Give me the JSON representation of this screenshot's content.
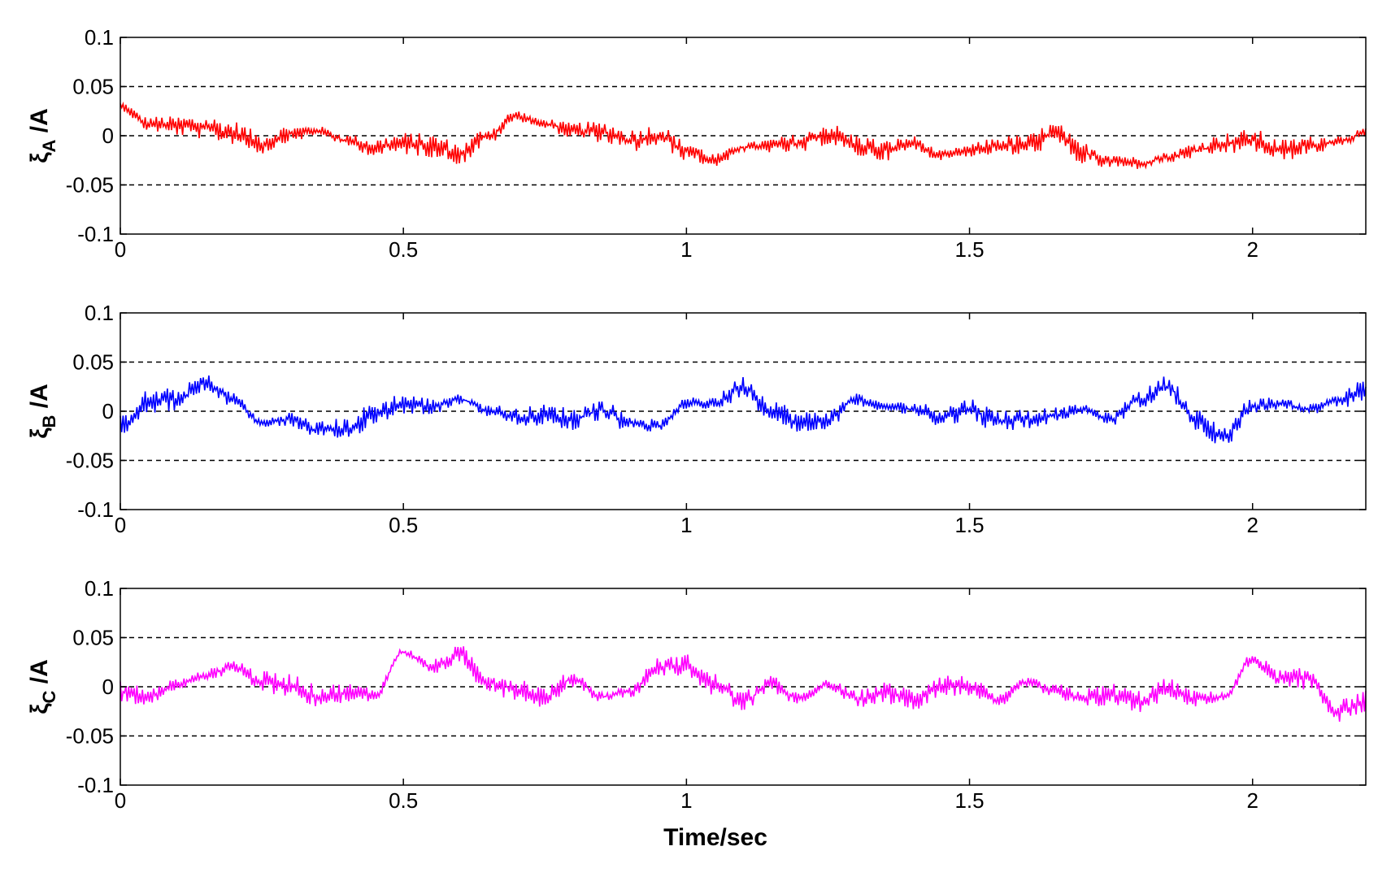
{
  "xlabel": "Time/sec",
  "chart_data": [
    {
      "type": "line",
      "ylabel": {
        "symbol": "ξ",
        "subscript": "A",
        "unit": " /A"
      },
      "xlim": [
        0,
        2.2
      ],
      "ylim": [
        -0.1,
        0.1
      ],
      "x_ticks": [
        "0",
        "0.5",
        "1",
        "1.5",
        "2"
      ],
      "y_ticks": [
        "0.1",
        "0.05",
        "0",
        "-0.05",
        "-0.1"
      ],
      "grid_lines_y": [
        0.05,
        0,
        -0.05
      ],
      "grid": "dashed horizontal",
      "color": "#ff0000",
      "x_step": 0.05,
      "y": [
        0.03,
        0.012,
        0.01,
        0.008,
        0.003,
        -0.008,
        0.002,
        0.005,
        -0.005,
        -0.012,
        -0.008,
        -0.01,
        -0.018,
        0.0,
        0.02,
        0.012,
        0.005,
        0.004,
        -0.005,
        0.0,
        -0.015,
        -0.025,
        -0.012,
        -0.01,
        -0.008,
        0.002,
        -0.01,
        -0.015,
        -0.008,
        -0.02,
        -0.015,
        -0.01,
        -0.01,
        0.002,
        -0.018,
        -0.025,
        -0.028,
        -0.022,
        -0.015,
        -0.008,
        -0.005,
        -0.015,
        -0.01,
        -0.006,
        0.003
      ]
    },
    {
      "type": "line",
      "ylabel": {
        "symbol": "ξ",
        "subscript": "B",
        "unit": " /A"
      },
      "xlim": [
        0,
        2.2
      ],
      "ylim": [
        -0.1,
        0.1
      ],
      "x_ticks": [
        "0",
        "0.5",
        "1",
        "1.5",
        "2"
      ],
      "y_ticks": [
        "0.1",
        "0.05",
        "0",
        "-0.05",
        "-0.1"
      ],
      "grid_lines_y": [
        0.05,
        0,
        -0.05
      ],
      "grid": "dashed horizontal",
      "color": "#0000ff",
      "x_step": 0.05,
      "y": [
        -0.015,
        0.01,
        0.012,
        0.028,
        0.012,
        -0.012,
        -0.008,
        -0.02,
        -0.018,
        -0.002,
        0.008,
        0.005,
        0.012,
        0.001,
        -0.006,
        -0.004,
        -0.008,
        0.001,
        -0.012,
        -0.015,
        0.008,
        0.008,
        0.025,
        0.002,
        -0.012,
        -0.008,
        0.012,
        0.005,
        0.002,
        -0.005,
        0.002,
        -0.01,
        -0.008,
        -0.004,
        0.002,
        -0.008,
        0.012,
        0.025,
        -0.01,
        -0.025,
        0.005,
        0.008,
        0.002,
        0.01,
        0.022
      ]
    },
    {
      "type": "line",
      "ylabel": {
        "symbol": "ξ",
        "subscript": "C",
        "unit": " /A"
      },
      "xlim": [
        0,
        2.2
      ],
      "ylim": [
        -0.1,
        0.1
      ],
      "x_ticks": [
        "0",
        "0.5",
        "1",
        "1.5",
        "2"
      ],
      "y_ticks": [
        "0.1",
        "0.05",
        "0",
        "-0.05",
        "-0.1"
      ],
      "grid_lines_y": [
        0.05,
        0,
        -0.05
      ],
      "grid": "dashed horizontal",
      "color": "#ff00ff",
      "x_step": 0.05,
      "y": [
        -0.005,
        -0.01,
        0.002,
        0.012,
        0.02,
        0.005,
        0.002,
        -0.01,
        -0.006,
        -0.008,
        0.035,
        0.02,
        0.032,
        0.005,
        -0.002,
        -0.01,
        0.008,
        -0.01,
        -0.005,
        0.02,
        0.022,
        0.002,
        -0.015,
        0.002,
        -0.012,
        0.002,
        -0.012,
        -0.006,
        -0.012,
        0.002,
        0.001,
        -0.015,
        0.005,
        -0.005,
        -0.012,
        -0.008,
        -0.015,
        -0.002,
        -0.012,
        -0.01,
        0.028,
        0.008,
        0.008,
        -0.025,
        -0.015
      ]
    }
  ]
}
